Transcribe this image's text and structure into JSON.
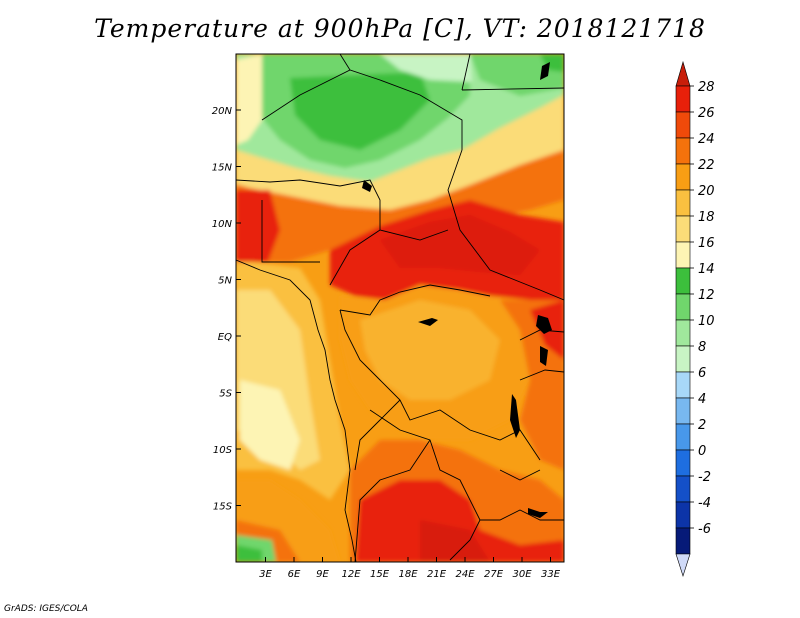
{
  "title": "Temperature at 900hPa [C], VT: 2018121718",
  "credit": "GrADS: IGES/COLA",
  "lon_labels": [
    "3E",
    "6E",
    "9E",
    "12E",
    "15E",
    "18E",
    "21E",
    "24E",
    "27E",
    "30E",
    "33E"
  ],
  "lat_labels": [
    "20N",
    "15N",
    "10N",
    "5N",
    "EQ",
    "5S",
    "10S",
    "15S"
  ],
  "colorbar": {
    "labels": [
      "28",
      "26",
      "24",
      "22",
      "20",
      "18",
      "16",
      "14",
      "12",
      "10",
      "8",
      "6",
      "4",
      "2",
      "0",
      "-2",
      "-4",
      "-6"
    ],
    "colors": [
      "#e8200a",
      "#f04a0a",
      "#f4720c",
      "#f89e14",
      "#fac040",
      "#fbdc78",
      "#fdf4b4",
      "#3cbf3c",
      "#70d66c",
      "#a0e89c",
      "#c8f4c4",
      "#a8d8f8",
      "#78b8f0",
      "#4898ea",
      "#1e6ee0",
      "#1450c8",
      "#0c34a8",
      "#061a78"
    ],
    "top_color": "#c81e0a",
    "bottom_color": "#d0daf8"
  }
}
